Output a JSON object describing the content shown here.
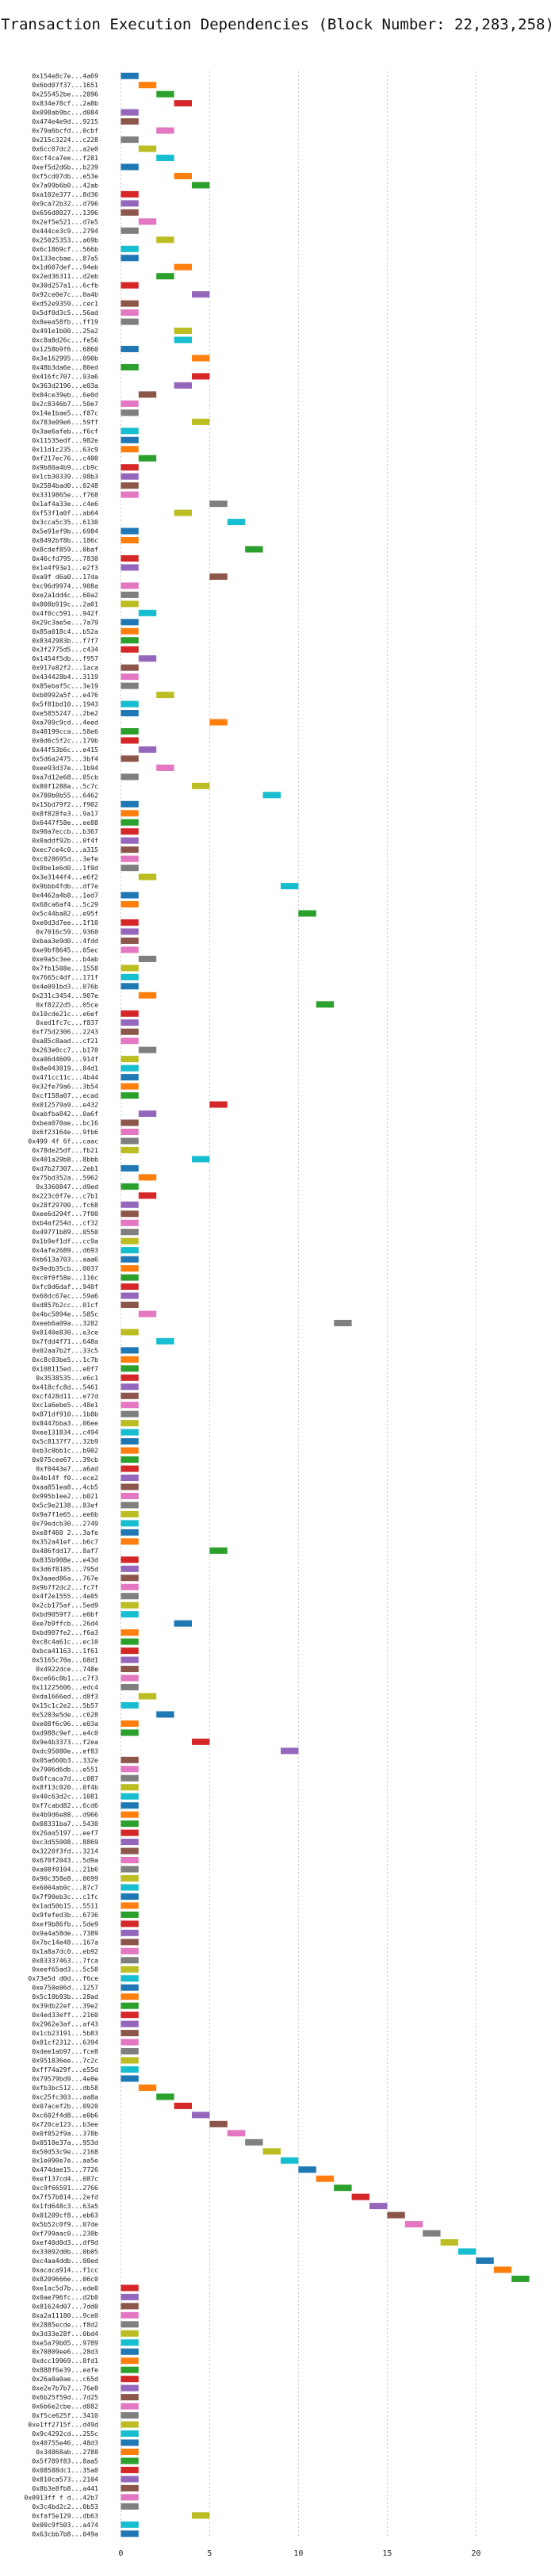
{
  "chart_data": {
    "type": "bar",
    "title": "Transaction Execution Dependencies (Block Number: 22,283,258)",
    "xlabel": "",
    "ylabel": "",
    "grid": true,
    "xlim": [
      -1,
      24
    ],
    "xticks": [
      0,
      5,
      10,
      15,
      20
    ],
    "colors": [
      "#1f77b4",
      "#ff7f0e",
      "#2ca02c",
      "#d62728",
      "#9467bd",
      "#8c564b",
      "#e377c2",
      "#7f7f7f",
      "#bcbd22",
      "#17becf"
    ],
    "transactions": [
      {
        "label": "0x154e8c7e...4a69",
        "x": 0
      },
      {
        "label": "0x6bd07f37...1651",
        "x": 1
      },
      {
        "label": "0x255452be...2896",
        "x": 2
      },
      {
        "label": "0x834e78cf...2a8b",
        "x": 3
      },
      {
        "label": "0x098ab9bc...d084",
        "x": 0
      },
      {
        "label": "0x474e4e9d...9215",
        "x": 0
      },
      {
        "label": "0x79a6bcfd...0cbf",
        "x": 2
      },
      {
        "label": "0x215c3224...c228",
        "x": 0
      },
      {
        "label": "0x6cc07dc2...a2e0",
        "x": 1
      },
      {
        "label": "0xcf4ca7ee...f281",
        "x": 2
      },
      {
        "label": "0xef5d2d6b...b239",
        "x": 0
      },
      {
        "label": "0xf5cd07db...e53e",
        "x": 3
      },
      {
        "label": "0x7a99b6b0...42ab",
        "x": 4
      },
      {
        "label": "0xa102e377...8d36",
        "x": 0
      },
      {
        "label": "0x9ca72b32...d796",
        "x": 0
      },
      {
        "label": "0x656d8027...1396",
        "x": 0
      },
      {
        "label": "0x2ef5e521...d7e5",
        "x": 1
      },
      {
        "label": "0x444ce3c9...2794",
        "x": 0
      },
      {
        "label": "0x25025353...a69b",
        "x": 2
      },
      {
        "label": "0x6c1869cf...566b",
        "x": 0
      },
      {
        "label": "0x133ecbae...87a5",
        "x": 0
      },
      {
        "label": "0x1d607def...94eb",
        "x": 3
      },
      {
        "label": "0x2ed36311...d2eb",
        "x": 2
      },
      {
        "label": "0x30d257a1...6cfb",
        "x": 0
      },
      {
        "label": "0x92ce0e7c...0a4b",
        "x": 4
      },
      {
        "label": "0xd52e9359...cec1",
        "x": 0
      },
      {
        "label": "0x5df0d3c5...56ad",
        "x": 0
      },
      {
        "label": "0x8eea58fb...ff19",
        "x": 0
      },
      {
        "label": "0x491e1b00...25a2",
        "x": 3
      },
      {
        "label": "0xc8a8d26c...fe56",
        "x": 3
      },
      {
        "label": "0x1258b9f6...6860",
        "x": 0
      },
      {
        "label": "0x3e162995...090b",
        "x": 4
      },
      {
        "label": "0x48b3da6e...80ed",
        "x": 0
      },
      {
        "label": "0x416fc707...93a6",
        "x": 4
      },
      {
        "label": "0x363d2196...e03a",
        "x": 3
      },
      {
        "label": "0x04ce39eb...6e0d",
        "x": 1
      },
      {
        "label": "0x2c8346b7...50e7",
        "x": 0
      },
      {
        "label": "0x14e1bae5...f87c",
        "x": 0
      },
      {
        "label": "0x783e09e6...59ff",
        "x": 4
      },
      {
        "label": "0x3ae6afeb...f6cf",
        "x": 0
      },
      {
        "label": "0x11535edf...982e",
        "x": 0
      },
      {
        "label": "0x11d1c235...63c9",
        "x": 0
      },
      {
        "label": "0xf217ec76...c400",
        "x": 1
      },
      {
        "label": "0x9b80a4b9...cb9c",
        "x": 0
      },
      {
        "label": "0x1cb30339...98b3",
        "x": 0
      },
      {
        "label": "0x2584bad0...0248",
        "x": 0
      },
      {
        "label": "0x3319865e...f768",
        "x": 0
      },
      {
        "label": "0x1af4a33e...c4e6",
        "x": 5
      },
      {
        "label": "0xf53f1a0f...ab64",
        "x": 3
      },
      {
        "label": "0x3cca5c35...6130",
        "x": 6
      },
      {
        "label": "0x5e91ef9b...6984",
        "x": 0
      },
      {
        "label": "0x8492bf8b...186c",
        "x": 0
      },
      {
        "label": "0x8cdef859...0baf",
        "x": 7
      },
      {
        "label": "0x46cfd795...7830",
        "x": 0
      },
      {
        "label": "0x1e4f93e1...e2f3",
        "x": 0
      },
      {
        "label": "0xa9f d6a0...17da",
        "x": 5
      },
      {
        "label": "0xc96d9974...908a",
        "x": 0
      },
      {
        "label": "0xe2a1dd4c...60a2",
        "x": 0
      },
      {
        "label": "0x808b919c...2a01",
        "x": 0
      },
      {
        "label": "0x4f0cc591...942f",
        "x": 1
      },
      {
        "label": "0x29c3ae5e...7a79",
        "x": 0
      },
      {
        "label": "0x85a018c4...b52a",
        "x": 0
      },
      {
        "label": "0x8342983b...f7f7",
        "x": 0
      },
      {
        "label": "0x3f2775d5...c434",
        "x": 0
      },
      {
        "label": "0x1454f5db...f957",
        "x": 1
      },
      {
        "label": "0x917e82f2...1aca",
        "x": 0
      },
      {
        "label": "0x434428b4...3119",
        "x": 0
      },
      {
        "label": "0x85ebaf5c...3e19",
        "x": 0
      },
      {
        "label": "0xb0992a5f...e476",
        "x": 2
      },
      {
        "label": "0x5f81bd10...1943",
        "x": 0
      },
      {
        "label": "0xe5855247...2be2",
        "x": 0
      },
      {
        "label": "0xa709c9cd...4eed",
        "x": 5
      },
      {
        "label": "0x48199cca...58e6",
        "x": 0
      },
      {
        "label": "0x0d6c5f2c...179b",
        "x": 0
      },
      {
        "label": "0x44f53b6c...e415",
        "x": 1
      },
      {
        "label": "0x5d6a2475...3bf4",
        "x": 0
      },
      {
        "label": "0xee93d37e...1b94",
        "x": 2
      },
      {
        "label": "0xa7d12e68...05cb",
        "x": 0
      },
      {
        "label": "0x80f1288a...5c7c",
        "x": 4
      },
      {
        "label": "0x780b0b55...6462",
        "x": 8
      },
      {
        "label": "0x15bd79f2...f902",
        "x": 0
      },
      {
        "label": "0x8f828fe3...9a17",
        "x": 0
      },
      {
        "label": "0x6447f58e...ee88",
        "x": 0
      },
      {
        "label": "0x90a7eccb...b367",
        "x": 0
      },
      {
        "label": "0x0addf92b...0f4f",
        "x": 0
      },
      {
        "label": "0xec7ce4c0...a315",
        "x": 0
      },
      {
        "label": "0xc028695d...3efe",
        "x": 0
      },
      {
        "label": "0x8be1e6d0...1f0d",
        "x": 0
      },
      {
        "label": "0x3e3144f4...e6f2",
        "x": 1
      },
      {
        "label": "0x9bbb4fdb...df7e",
        "x": 9
      },
      {
        "label": "0x4462a4b8...1ed7",
        "x": 0
      },
      {
        "label": "0x68ca6af4...5c29",
        "x": 0
      },
      {
        "label": "0x5c44ba82...e95f",
        "x": 10
      },
      {
        "label": "0xe0d3d7ee...1f10",
        "x": 0
      },
      {
        "label": "0x7016c59...9360",
        "x": 0
      },
      {
        "label": "0xbaa3e9d0...4fdd",
        "x": 0
      },
      {
        "label": "0xe9bf8645...05ec",
        "x": 0
      },
      {
        "label": "0xe9a5c3ee...b4ab",
        "x": 1
      },
      {
        "label": "0x7fb1508e...1558",
        "x": 0
      },
      {
        "label": "0x7665c4df...171f",
        "x": 0
      },
      {
        "label": "0x4e091bd3...076b",
        "x": 0
      },
      {
        "label": "0x231c3454...907e",
        "x": 1
      },
      {
        "label": "0xf8222d5...05ce",
        "x": 11
      },
      {
        "label": "0x10cde21c...e6ef",
        "x": 0
      },
      {
        "label": "0xed1fc7c...f837",
        "x": 0
      },
      {
        "label": "0xf75d2306...2243",
        "x": 0
      },
      {
        "label": "0xa85c8aad...cf21",
        "x": 0
      },
      {
        "label": "0x263e0cc7...b170",
        "x": 1
      },
      {
        "label": "0xa06d4609...914f",
        "x": 0
      },
      {
        "label": "0x8e043019...84d1",
        "x": 0
      },
      {
        "label": "0x471cc11c...4b44",
        "x": 0
      },
      {
        "label": "0x32fe79a6...3b54",
        "x": 0
      },
      {
        "label": "0xcf158a07...ecad",
        "x": 0
      },
      {
        "label": "0x012579a9...e432",
        "x": 5
      },
      {
        "label": "0xabfba842...0a6f",
        "x": 1
      },
      {
        "label": "0xbea070ae...bc16",
        "x": 0
      },
      {
        "label": "0x6f23164e...9fb6",
        "x": 0
      },
      {
        "label": "0x499 4f 6f...caac",
        "x": 0
      },
      {
        "label": "0x78de25df...fb21",
        "x": 0
      },
      {
        "label": "0x401a29b8...8bbb",
        "x": 4
      },
      {
        "label": "0xd7b27307...2eb1",
        "x": 0
      },
      {
        "label": "0x75bd352a...5962",
        "x": 1
      },
      {
        "label": "0x3360847...d9ed",
        "x": 0
      },
      {
        "label": "0x223c0f7e...c7b1",
        "x": 1
      },
      {
        "label": "0x28f29700...fc68",
        "x": 0
      },
      {
        "label": "0xee6d294f...7f00",
        "x": 0
      },
      {
        "label": "0xb4af254d...cf32",
        "x": 0
      },
      {
        "label": "0x49771b89...0550",
        "x": 0
      },
      {
        "label": "0x1b9ef1df...cc9a",
        "x": 0
      },
      {
        "label": "0x4afe2689...d693",
        "x": 0
      },
      {
        "label": "0xb613a703...aaa6",
        "x": 0
      },
      {
        "label": "0x9edb35cb...0037",
        "x": 0
      },
      {
        "label": "0xc0f0f58e...116c",
        "x": 0
      },
      {
        "label": "0xfc0d6daf...940f",
        "x": 0
      },
      {
        "label": "0x60dc67ec...59a6",
        "x": 0
      },
      {
        "label": "0xd857b2cc...01cf",
        "x": 0
      },
      {
        "label": "0x4bc5894e...585c",
        "x": 1
      },
      {
        "label": "0xeeb6a09a...3282",
        "x": 12
      },
      {
        "label": "0x8140e830...e3ce",
        "x": 0
      },
      {
        "label": "0x7fdd4f71...648a",
        "x": 2
      },
      {
        "label": "0x02aa7b2f...33c5",
        "x": 0
      },
      {
        "label": "0xc8c03be5...1c7b",
        "x": 0
      },
      {
        "label": "0x108115ed...e0f7",
        "x": 0
      },
      {
        "label": "0x3538535...e6c1",
        "x": 0
      },
      {
        "label": "0x418cfc8d...5461",
        "x": 0
      },
      {
        "label": "0xcf428d11...e77d",
        "x": 0
      },
      {
        "label": "0xc1a6ebe5...48e1",
        "x": 0
      },
      {
        "label": "0x871df910...1b8b",
        "x": 0
      },
      {
        "label": "0x8447bba3...06ee",
        "x": 0
      },
      {
        "label": "0xee131834...c494",
        "x": 0
      },
      {
        "label": "0x5c8137f7...32b9",
        "x": 0
      },
      {
        "label": "0xb3c0bb1c...b902",
        "x": 0
      },
      {
        "label": "0x075cee67...39cb",
        "x": 0
      },
      {
        "label": "0xf0443e7...a6ad",
        "x": 0
      },
      {
        "label": "0x4b14f f0...ece2",
        "x": 0
      },
      {
        "label": "0xaa851ea8...4cb5",
        "x": 0
      },
      {
        "label": "0x995b1ee2...b021",
        "x": 0
      },
      {
        "label": "0x5c9e2138...83ef",
        "x": 0
      },
      {
        "label": "0x9a7f1e65...ee6b",
        "x": 0
      },
      {
        "label": "0x79edcb30...2749",
        "x": 0
      },
      {
        "label": "0xe8f460 2...3afe",
        "x": 0
      },
      {
        "label": "0x352a41ef...b6c7",
        "x": 0
      },
      {
        "label": "0x486fdd17...8af7",
        "x": 5
      },
      {
        "label": "0x835b908e...e43d",
        "x": 0
      },
      {
        "label": "0x3d6f8185...795d",
        "x": 0
      },
      {
        "label": "0x3aaed86a...767e",
        "x": 0
      },
      {
        "label": "0x9b7f2dc2...fc7f",
        "x": 0
      },
      {
        "label": "0x4f2e1555...4e05",
        "x": 0
      },
      {
        "label": "0x2cb175af...5ed9",
        "x": 0
      },
      {
        "label": "0xbd9059f7...e0bf",
        "x": 0
      },
      {
        "label": "0xe7b9ffcb...26d4",
        "x": 3
      },
      {
        "label": "0xbd907fe2...f6a3",
        "x": 0
      },
      {
        "label": "0xc8c4a61c...ec10",
        "x": 0
      },
      {
        "label": "0xbca41163...1f61",
        "x": 0
      },
      {
        "label": "0x5165c70a...68d1",
        "x": 0
      },
      {
        "label": "0x4922dce...748e",
        "x": 0
      },
      {
        "label": "0xce66c0b1...c7f3",
        "x": 0
      },
      {
        "label": "0x11225606...edc4",
        "x": 0
      },
      {
        "label": "0xda1666ed...d8f3",
        "x": 1
      },
      {
        "label": "0x15c1c2e2...5b57",
        "x": 0
      },
      {
        "label": "0x5203e5de...c628",
        "x": 2
      },
      {
        "label": "0xe08f6c96...e03a",
        "x": 0
      },
      {
        "label": "0xd988c9ef...e4c0",
        "x": 0
      },
      {
        "label": "0x9e4b3373...f2ea",
        "x": 4
      },
      {
        "label": "0xdc95080e...ef83",
        "x": 9
      },
      {
        "label": "0x05a660b3...332e",
        "x": 0
      },
      {
        "label": "0x7906d6db...e551",
        "x": 0
      },
      {
        "label": "0x6fcaca7d...c087",
        "x": 0
      },
      {
        "label": "0x8f13c020...0f4b",
        "x": 0
      },
      {
        "label": "0x40c63d2c...1081",
        "x": 0
      },
      {
        "label": "0xf7cabd82...6cd6",
        "x": 0
      },
      {
        "label": "0x4b9d6e88...d966",
        "x": 0
      },
      {
        "label": "0x08331ba7...5430",
        "x": 0
      },
      {
        "label": "0x26aa5197...eef7",
        "x": 0
      },
      {
        "label": "0xc3d55008...8869",
        "x": 0
      },
      {
        "label": "0x3220f3fd...3214",
        "x": 0
      },
      {
        "label": "0x670f2043...5d9a",
        "x": 0
      },
      {
        "label": "0xa08f0104...21b6",
        "x": 0
      },
      {
        "label": "0x90c358e8...0699",
        "x": 0
      },
      {
        "label": "0x6004ab0c...87c7",
        "x": 0
      },
      {
        "label": "0x7f90eb3c...c1fc",
        "x": 0
      },
      {
        "label": "0x1ad50b15...5511",
        "x": 0
      },
      {
        "label": "0x9fefed3b...6736",
        "x": 0
      },
      {
        "label": "0xef9b86fb...5de9",
        "x": 0
      },
      {
        "label": "0x9a4a58de...7389",
        "x": 0
      },
      {
        "label": "0x7bc14e48...167a",
        "x": 0
      },
      {
        "label": "0x1a8a7dc0...eb92",
        "x": 0
      },
      {
        "label": "0x83337463...7fca",
        "x": 0
      },
      {
        "label": "0xeef65ad3...5c58",
        "x": 0
      },
      {
        "label": "0x73e5d d0d...f6ce",
        "x": 0
      },
      {
        "label": "0xe750e06d...1257",
        "x": 0
      },
      {
        "label": "0x5c10b93b...28ad",
        "x": 0
      },
      {
        "label": "0x39db22ef...39e2",
        "x": 0
      },
      {
        "label": "0x4ed33eff...2160",
        "x": 0
      },
      {
        "label": "0x2962e3af...af43",
        "x": 0
      },
      {
        "label": "0x1cb23191...5b83",
        "x": 0
      },
      {
        "label": "0x81cf2312...6394",
        "x": 0
      },
      {
        "label": "0xdee1ab97...fce8",
        "x": 0
      },
      {
        "label": "0x951836ee...7c2c",
        "x": 0
      },
      {
        "label": "0xff74a29f...e55d",
        "x": 0
      },
      {
        "label": "0x79579bd9...4e0e",
        "x": 0
      },
      {
        "label": "0xfb3bc512...db58",
        "x": 1
      },
      {
        "label": "0xc25fc303...aa8a",
        "x": 2
      },
      {
        "label": "0x07acef2b...0920",
        "x": 3
      },
      {
        "label": "0xc602f4d8...e0b6",
        "x": 4
      },
      {
        "label": "0x720ce123...b3ee",
        "x": 5
      },
      {
        "label": "0x0f852f9a...378b",
        "x": 6
      },
      {
        "label": "0x0510e37a...953d",
        "x": 7
      },
      {
        "label": "0x50d53c9e...2168",
        "x": 8
      },
      {
        "label": "0x1e090e7e...aa5e",
        "x": 9
      },
      {
        "label": "0x474dae15...7726",
        "x": 10
      },
      {
        "label": "0xef137cd4...087c",
        "x": 11
      },
      {
        "label": "0xc9f66591...2766",
        "x": 12
      },
      {
        "label": "0x7f57b814...2efd",
        "x": 13
      },
      {
        "label": "0x1fd648c3...63a5",
        "x": 14
      },
      {
        "label": "0x01209cf8...eb63",
        "x": 15
      },
      {
        "label": "0x5b52c0f9...07de",
        "x": 16
      },
      {
        "label": "0xf799aac0...230b",
        "x": 17
      },
      {
        "label": "0xef40d0d3...df9d",
        "x": 18
      },
      {
        "label": "0x33092d0b...0b05",
        "x": 19
      },
      {
        "label": "0xc4aa4ddb...00ed",
        "x": 20
      },
      {
        "label": "0xacaca914...f1cc",
        "x": 21
      },
      {
        "label": "0x8209666e...06c0",
        "x": 22
      },
      {
        "label": "0xe1ac5d7b...ede0",
        "x": 0
      },
      {
        "label": "0x0ae796fc...d2b0",
        "x": 0
      },
      {
        "label": "0x81624d07...7dd0",
        "x": 0
      },
      {
        "label": "0xa2a11180...9ce0",
        "x": 0
      },
      {
        "label": "0x2885ecde...f8d2",
        "x": 0
      },
      {
        "label": "0x3d33e28f...0bd4",
        "x": 0
      },
      {
        "label": "0xe5a79b05...9789",
        "x": 0
      },
      {
        "label": "0x70809ee6...28d3",
        "x": 0
      },
      {
        "label": "0xdcc19969...8fd1",
        "x": 0
      },
      {
        "label": "0x888f6e39...eafe",
        "x": 0
      },
      {
        "label": "0x26a0a0ae...c65d",
        "x": 0
      },
      {
        "label": "0xe2e7b7b7...76e8",
        "x": 0
      },
      {
        "label": "0x6b25f59d...7d25",
        "x": 0
      },
      {
        "label": "0x6b6e2cbe...d882",
        "x": 0
      },
      {
        "label": "0xf5ce625f...3410",
        "x": 0
      },
      {
        "label": "0xe1ff2715f...d49d",
        "x": 0
      },
      {
        "label": "0x9c4292cd...255c",
        "x": 0
      },
      {
        "label": "0x40755e46...48d3",
        "x": 0
      },
      {
        "label": "0x34868ab...2780",
        "x": 0
      },
      {
        "label": "0x5f789f83...8aa5",
        "x": 0
      },
      {
        "label": "0x08588dc1...35a0",
        "x": 0
      },
      {
        "label": "0x810ca573...2104",
        "x": 0
      },
      {
        "label": "0x8b3e8fb8...a441",
        "x": 0
      },
      {
        "label": "0x0913ff f d...42b7",
        "x": 0
      },
      {
        "label": "0x3c4bd2c2...0b53",
        "x": 0
      },
      {
        "label": "0xfaf5e129...db63",
        "x": 4
      },
      {
        "label": "0x00c9f503...a474",
        "x": 0
      },
      {
        "label": "0x63cbb7b8...049a",
        "x": 0
      }
    ]
  }
}
